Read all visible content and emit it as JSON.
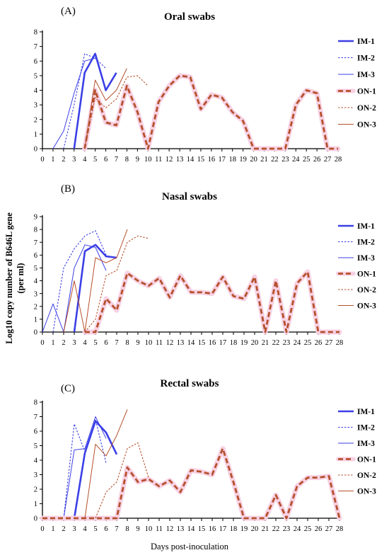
{
  "figure": {
    "xlabel": "Days post-inoculation",
    "ylabel_line1": "Log10 copy number of B646L gene",
    "ylabel_line2": "(per ml)"
  },
  "series_styles": [
    {
      "name": "IM-1",
      "color": "#3b3fe6",
      "width": 2.6,
      "dash": ""
    },
    {
      "name": "IM-2",
      "color": "#3b3fe6",
      "width": 1.1,
      "dash": "2.5,2"
    },
    {
      "name": "IM-3",
      "color": "#3b3fe6",
      "width": 1.0,
      "dash": ""
    },
    {
      "name": "ON-1",
      "color": "#b5502c",
      "width": 2.8,
      "dash": "7,4",
      "halo": "#f7d2e4"
    },
    {
      "name": "ON-2",
      "color": "#b5502c",
      "width": 1.1,
      "dash": "2.5,2"
    },
    {
      "name": "ON-3",
      "color": "#b5502c",
      "width": 1.0,
      "dash": ""
    }
  ],
  "chart_data": [
    {
      "type": "line",
      "panel_label": "(A)",
      "title": "Oral swabs",
      "xlim": [
        0,
        28
      ],
      "ylim": [
        0,
        8
      ],
      "x_ticks": [
        0,
        1,
        2,
        3,
        4,
        5,
        6,
        7,
        8,
        9,
        10,
        11,
        12,
        13,
        14,
        15,
        16,
        17,
        18,
        19,
        20,
        21,
        22,
        23,
        24,
        25,
        26,
        27,
        28
      ],
      "y_ticks": [
        0,
        1,
        2,
        3,
        4,
        5,
        6,
        7,
        8
      ],
      "series": [
        {
          "name": "IM-1",
          "x": [
            3,
            4,
            5,
            6,
            7
          ],
          "y": [
            0,
            5.2,
            6.5,
            4.0,
            5.2
          ]
        },
        {
          "name": "IM-2",
          "x": [
            2,
            3,
            4,
            5,
            6
          ],
          "y": [
            0,
            3.0,
            6.5,
            6.2,
            5.5
          ]
        },
        {
          "name": "IM-3",
          "x": [
            1,
            2,
            3,
            4,
            5
          ],
          "y": [
            0,
            1.2,
            3.8,
            6.0,
            6.2
          ]
        },
        {
          "name": "ON-1",
          "x": [
            4,
            5,
            6,
            7,
            8,
            9,
            10,
            11,
            12,
            13,
            14,
            15,
            16,
            17,
            18,
            19,
            20,
            21,
            22,
            23,
            24,
            25,
            26,
            27,
            28
          ],
          "y": [
            0,
            4.0,
            1.8,
            1.6,
            4.3,
            2.5,
            0,
            3.2,
            4.3,
            5.0,
            4.9,
            2.7,
            3.7,
            3.5,
            2.5,
            1.9,
            0,
            0,
            0,
            0,
            3.0,
            4.0,
            3.8,
            0,
            0
          ]
        },
        {
          "name": "ON-2",
          "x": [
            4,
            5,
            6,
            7,
            8,
            9,
            10
          ],
          "y": [
            0,
            3.5,
            2.8,
            3.4,
            4.9,
            5.0,
            4.3
          ]
        },
        {
          "name": "ON-3",
          "x": [
            4,
            5,
            6,
            7,
            8
          ],
          "y": [
            0,
            4.7,
            3.3,
            4.0,
            5.5
          ]
        }
      ]
    },
    {
      "type": "line",
      "panel_label": "(B)",
      "title": "Nasal swabs",
      "xlim": [
        0,
        28
      ],
      "ylim": [
        0,
        9
      ],
      "x_ticks": [
        0,
        1,
        2,
        3,
        4,
        5,
        6,
        7,
        8,
        9,
        10,
        11,
        12,
        13,
        14,
        15,
        16,
        17,
        18,
        19,
        20,
        21,
        22,
        23,
        24,
        25,
        26,
        27,
        28
      ],
      "y_ticks": [
        0,
        1,
        2,
        3,
        4,
        5,
        6,
        7,
        8,
        9
      ],
      "series": [
        {
          "name": "IM-1",
          "x": [
            3,
            4,
            5,
            6,
            7
          ],
          "y": [
            0,
            6.3,
            6.8,
            5.9,
            5.8
          ]
        },
        {
          "name": "IM-2",
          "x": [
            1,
            2,
            3,
            4,
            5,
            6
          ],
          "y": [
            0,
            5.0,
            6.5,
            7.5,
            7.9,
            6.0
          ]
        },
        {
          "name": "IM-3",
          "x": [
            0,
            1,
            2,
            3,
            4,
            5,
            6
          ],
          "y": [
            0,
            2.2,
            0,
            5.0,
            6.8,
            6.6,
            4.8
          ]
        },
        {
          "name": "ON-1",
          "x": [
            4,
            5,
            6,
            7,
            8,
            9,
            10,
            11,
            12,
            13,
            14,
            15,
            16,
            17,
            18,
            19,
            20,
            21,
            22,
            23,
            24,
            25,
            26,
            27,
            28
          ],
          "y": [
            0,
            0,
            2.6,
            1.7,
            4.6,
            4.0,
            3.6,
            4.2,
            2.7,
            4.4,
            3.1,
            3.1,
            3.0,
            4.3,
            2.8,
            2.6,
            4.3,
            0,
            4.0,
            0,
            3.8,
            4.7,
            0,
            0,
            0
          ]
        },
        {
          "name": "ON-2",
          "x": [
            4,
            5,
            6,
            7,
            8,
            9,
            10
          ],
          "y": [
            0,
            1.0,
            4.4,
            4.8,
            7.0,
            7.5,
            7.3
          ]
        },
        {
          "name": "ON-3",
          "x": [
            2,
            3,
            4,
            5,
            6,
            7,
            8
          ],
          "y": [
            0,
            4.0,
            0,
            5.8,
            5.4,
            5.8,
            8.0
          ]
        }
      ]
    },
    {
      "type": "line",
      "panel_label": "(C)",
      "title": "Rectal swabs",
      "xlim": [
        0,
        28
      ],
      "ylim": [
        0,
        8
      ],
      "x_ticks": [
        0,
        1,
        2,
        3,
        4,
        5,
        6,
        7,
        8,
        9,
        10,
        11,
        12,
        13,
        14,
        15,
        16,
        17,
        18,
        19,
        20,
        21,
        22,
        23,
        24,
        25,
        26,
        27,
        28
      ],
      "y_ticks": [
        0,
        1,
        2,
        3,
        4,
        5,
        6,
        7,
        8
      ],
      "series": [
        {
          "name": "IM-1",
          "x": [
            0,
            1,
            2,
            3,
            4,
            5,
            6,
            7
          ],
          "y": [
            0,
            0,
            0,
            0,
            4.5,
            6.7,
            5.9,
            4.4
          ]
        },
        {
          "name": "IM-2",
          "x": [
            2,
            3,
            4,
            5,
            6
          ],
          "y": [
            0,
            6.5,
            4.6,
            6.8,
            3.8
          ]
        },
        {
          "name": "IM-3",
          "x": [
            2,
            3,
            4,
            5,
            6
          ],
          "y": [
            0,
            4.7,
            4.8,
            7.0,
            5.5
          ]
        },
        {
          "name": "ON-1",
          "x": [
            0,
            1,
            2,
            3,
            4,
            5,
            6,
            7,
            8,
            9,
            10,
            11,
            12,
            13,
            14,
            15,
            16,
            17,
            18,
            19,
            20,
            21,
            22,
            23,
            24,
            25,
            26,
            27,
            28
          ],
          "y": [
            0,
            0,
            0,
            0,
            0,
            0,
            0,
            0,
            3.5,
            2.5,
            2.7,
            2.2,
            2.6,
            1.8,
            3.3,
            3.2,
            3.0,
            4.8,
            2.5,
            0,
            0,
            0,
            1.6,
            0,
            2.2,
            2.8,
            2.8,
            2.9,
            0
          ]
        },
        {
          "name": "ON-2",
          "x": [
            5,
            6,
            7,
            8,
            9,
            10
          ],
          "y": [
            0,
            1.8,
            2.5,
            4.8,
            5.2,
            2.8
          ]
        },
        {
          "name": "ON-3",
          "x": [
            4,
            5,
            6,
            7,
            8
          ],
          "y": [
            0,
            5.1,
            4.3,
            5.7,
            7.5
          ]
        }
      ]
    }
  ]
}
